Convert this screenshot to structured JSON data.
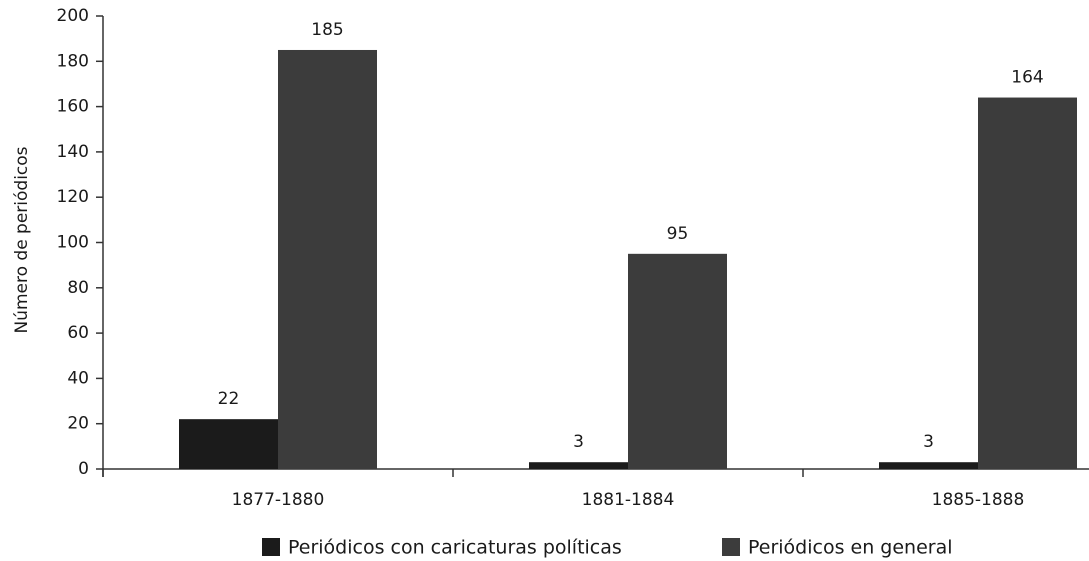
{
  "chart_data": {
    "type": "bar",
    "y_label": "Número de periódicos",
    "categories": [
      "1877-1880",
      "1881-1884",
      "1885-1888"
    ],
    "series": [
      {
        "name": "Periódicos con caricaturas políticas",
        "color": "#1b1b1b",
        "values": [
          22,
          3,
          3
        ]
      },
      {
        "name": "Periódicos en general",
        "color": "#3c3c3c",
        "values": [
          185,
          95,
          164
        ]
      }
    ],
    "ylim": [
      0,
      200
    ],
    "yticks": [
      0,
      20,
      40,
      60,
      80,
      100,
      120,
      140,
      160,
      180,
      200
    ]
  }
}
